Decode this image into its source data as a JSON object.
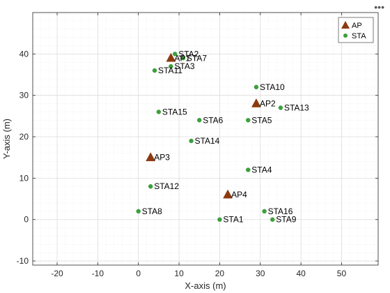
{
  "toolbar": {
    "menu_icon": "more-options-icon",
    "menu_glyph": "•••"
  },
  "chart_data": {
    "type": "scatter",
    "title": "",
    "xlabel": "X-axis (m)",
    "ylabel": "Y-axis (m)",
    "xlim": [
      -26,
      59
    ],
    "ylim": [
      -11,
      50
    ],
    "xticks": [
      -20,
      -10,
      0,
      10,
      20,
      30,
      40,
      50
    ],
    "yticks": [
      -10,
      0,
      10,
      20,
      30,
      40
    ],
    "grid": true,
    "minor_grid": true,
    "legend": {
      "placement": "top-right",
      "entries": [
        "AP",
        "STA"
      ]
    },
    "colors": {
      "ap": "#8B3A0F",
      "sta": "#3CA03C"
    },
    "series": [
      {
        "name": "AP",
        "marker": "triangle",
        "points": [
          {
            "label": "AP1",
            "x": 8,
            "y": 39
          },
          {
            "label": "AP2",
            "x": 29,
            "y": 28
          },
          {
            "label": "AP3",
            "x": 3,
            "y": 15
          },
          {
            "label": "AP4",
            "x": 22,
            "y": 6
          }
        ]
      },
      {
        "name": "STA",
        "marker": "circle",
        "points": [
          {
            "label": "STA1",
            "x": 20,
            "y": 0
          },
          {
            "label": "STA2",
            "x": 9,
            "y": 40
          },
          {
            "label": "STA3",
            "x": 8,
            "y": 37
          },
          {
            "label": "STA4",
            "x": 27,
            "y": 12
          },
          {
            "label": "STA5",
            "x": 27,
            "y": 24
          },
          {
            "label": "STA6",
            "x": 15,
            "y": 24
          },
          {
            "label": "STA7",
            "x": 11,
            "y": 39
          },
          {
            "label": "STA8",
            "x": 0,
            "y": 2
          },
          {
            "label": "STA9",
            "x": 33,
            "y": 0
          },
          {
            "label": "STA10",
            "x": 29,
            "y": 32
          },
          {
            "label": "STA11",
            "x": 4,
            "y": 36
          },
          {
            "label": "STA12",
            "x": 3,
            "y": 8
          },
          {
            "label": "STA13",
            "x": 35,
            "y": 27
          },
          {
            "label": "STA14",
            "x": 13,
            "y": 19
          },
          {
            "label": "STA15",
            "x": 5,
            "y": 26
          },
          {
            "label": "STA16",
            "x": 31,
            "y": 2
          }
        ]
      }
    ]
  }
}
